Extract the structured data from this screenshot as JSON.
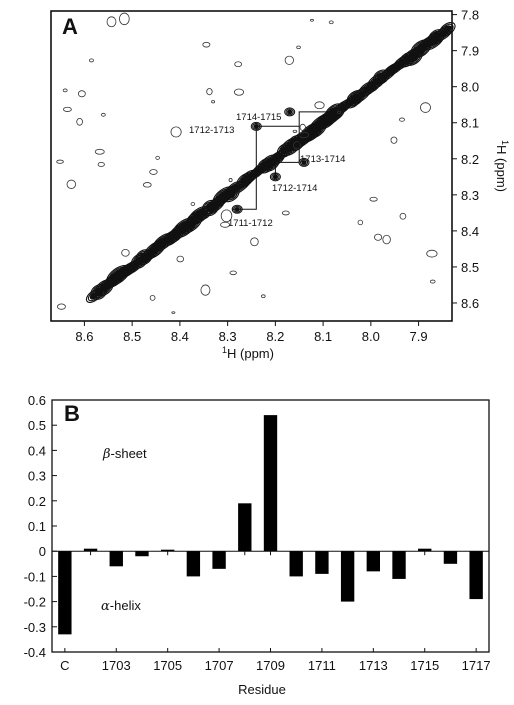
{
  "chart_data": [
    {
      "panel": "A",
      "type": "contour",
      "xlabel_sup": "1",
      "xlabel": "H (ppm)",
      "ylabel_sup": "1",
      "ylabel": "H (ppm)",
      "x_ticks": [
        "8.6",
        "8.5",
        "8.4",
        "8.3",
        "8.2",
        "8.1",
        "8.0",
        "7.9"
      ],
      "y_ticks": [
        "7.8",
        "7.9",
        "8.0",
        "8.1",
        "8.2",
        "8.3",
        "8.4",
        "8.5",
        "8.6"
      ],
      "xlim": [
        8.67,
        7.83
      ],
      "ylim": [
        7.79,
        8.65
      ],
      "cross_peaks": [
        {
          "label": "1714-1715",
          "x": 8.17,
          "y": 8.07
        },
        {
          "label": "1712-1713",
          "x": 8.24,
          "y": 8.11
        },
        {
          "label": "1713-1714",
          "x": 8.14,
          "y": 8.21
        },
        {
          "label": "1712-1714",
          "x": 8.2,
          "y": 8.25
        },
        {
          "label": "1711-1712",
          "x": 8.28,
          "y": 8.34
        }
      ]
    },
    {
      "panel": "B",
      "type": "bar",
      "xlabel": "Residue",
      "ylabel": "",
      "ylim": [
        -0.4,
        0.6
      ],
      "y_ticks": [
        "0.6",
        "0.5",
        "0.4",
        "0.3",
        "0.2",
        "0.1",
        "0",
        "-0.1",
        "-0.2",
        "-0.3",
        "-0.4"
      ],
      "x_ticks": [
        "C",
        "1703",
        "1705",
        "1707",
        "1709",
        "1711",
        "1713",
        "1715",
        "1717"
      ],
      "categories": [
        "C",
        "1702",
        "1703",
        "1704",
        "1705",
        "1706",
        "1707",
        "1708",
        "1709",
        "1710",
        "1711",
        "1712",
        "1713",
        "1714",
        "1715",
        "1716",
        "1717"
      ],
      "values": [
        -0.33,
        0.01,
        -0.06,
        -0.02,
        0.0,
        -0.1,
        -0.07,
        0.19,
        0.54,
        -0.1,
        -0.09,
        -0.2,
        -0.08,
        -0.11,
        0.01,
        -0.05,
        -0.19
      ],
      "annotations": {
        "beta_symbol": "β",
        "beta_text": "-sheet",
        "alpha_symbol": "α",
        "alpha_text": "-helix"
      }
    }
  ]
}
